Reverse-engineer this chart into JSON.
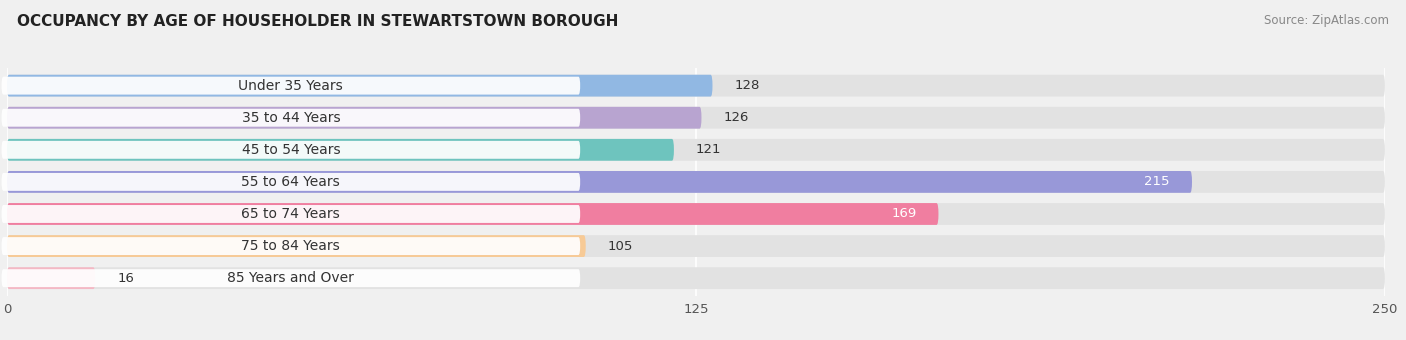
{
  "title": "OCCUPANCY BY AGE OF HOUSEHOLDER IN STEWARTSTOWN BOROUGH",
  "source": "Source: ZipAtlas.com",
  "categories": [
    "Under 35 Years",
    "35 to 44 Years",
    "45 to 54 Years",
    "55 to 64 Years",
    "65 to 74 Years",
    "75 to 84 Years",
    "85 Years and Over"
  ],
  "values": [
    128,
    126,
    121,
    215,
    169,
    105,
    16
  ],
  "bar_colors": [
    "#91B8E3",
    "#B8A4D0",
    "#6EC4BE",
    "#9898D8",
    "#F07EA0",
    "#F7CA96",
    "#F4B8C4"
  ],
  "value_white": [
    false,
    false,
    false,
    true,
    true,
    false,
    false
  ],
  "xlim_min": 0,
  "xlim_max": 250,
  "xticks": [
    0,
    125,
    250
  ],
  "bar_height": 0.68,
  "label_fontsize": 10,
  "value_fontsize": 9.5,
  "title_fontsize": 11,
  "background_color": "#f0f0f0",
  "bar_bg_color": "#e2e2e2",
  "label_bg_color": "#ffffff",
  "grid_color": "#ffffff",
  "sep_color": "#ffffff"
}
